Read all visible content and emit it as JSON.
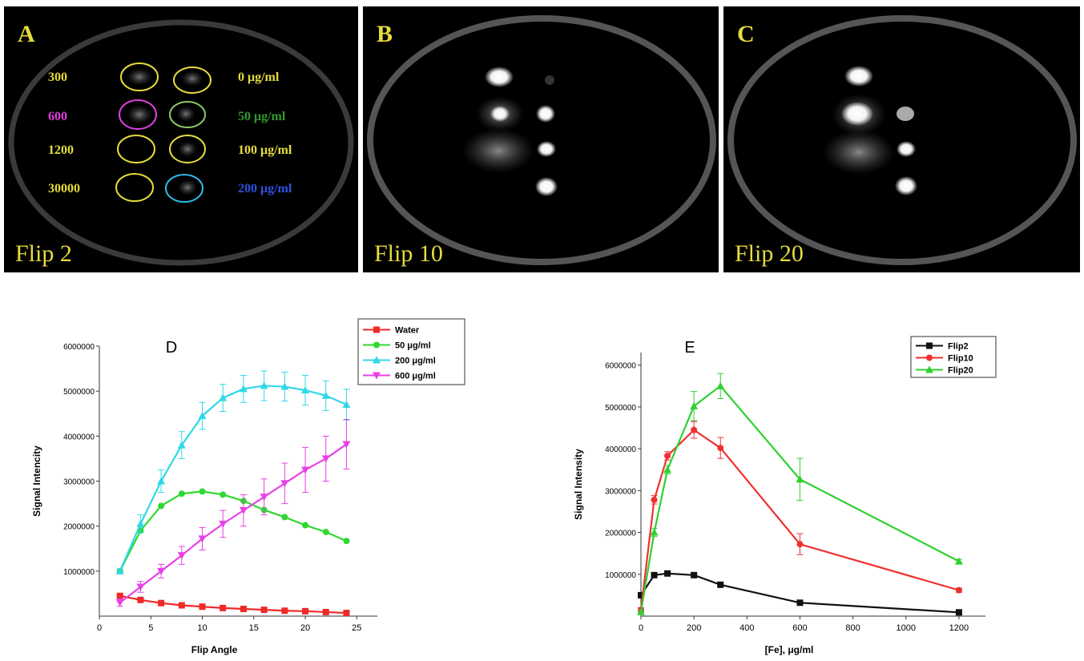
{
  "panels": [
    {
      "letter": "A",
      "caption": "Flip 2",
      "left_labels": [
        {
          "text": "300",
          "color": "#e6dc3c"
        },
        {
          "text": "600",
          "color": "#e040e0"
        },
        {
          "text": "1200",
          "color": "#e6dc3c"
        },
        {
          "text": "30000",
          "color": "#e6dc3c"
        }
      ],
      "right_labels": [
        {
          "text": "0 μg/ml",
          "color": "#e6dc3c"
        },
        {
          "text": "50 μg/ml",
          "color": "#2f9a2f"
        },
        {
          "text": "100 μg/ml",
          "color": "#e6dc3c"
        },
        {
          "text": "200 μg/ml",
          "color": "#3050e0"
        }
      ]
    },
    {
      "letter": "B",
      "caption": "Flip 10"
    },
    {
      "letter": "C",
      "caption": "Flip 20"
    }
  ],
  "chart_data": [
    {
      "type": "line",
      "title": "D",
      "x_label": "Flip Angle",
      "y_label": "Signal Intencity",
      "x": [
        2,
        4,
        6,
        8,
        10,
        12,
        14,
        16,
        18,
        20,
        22,
        24
      ],
      "xlim": [
        0,
        27
      ],
      "xticks": [
        0,
        5,
        10,
        15,
        20,
        25
      ],
      "ylim": [
        0,
        6000000
      ],
      "yticks": [
        1000000,
        2000000,
        3000000,
        4000000,
        5000000,
        6000000
      ],
      "series": [
        {
          "name": "Water",
          "color": "#f02828",
          "marker": "square",
          "values": [
            450000,
            360000,
            290000,
            240000,
            210000,
            180000,
            160000,
            140000,
            120000,
            110000,
            90000,
            70000
          ]
        },
        {
          "name": "50 μg/ml",
          "color": "#30d830",
          "marker": "circle",
          "values": [
            1000000,
            1900000,
            2450000,
            2720000,
            2770000,
            2700000,
            2560000,
            2360000,
            2200000,
            2020000,
            1870000,
            1670000
          ]
        },
        {
          "name": "200 μg/ml",
          "color": "#30d8e8",
          "marker": "triangle",
          "values": [
            1000000,
            2050000,
            3000000,
            3800000,
            4450000,
            4850000,
            5050000,
            5120000,
            5100000,
            5020000,
            4900000,
            4700000
          ],
          "errors": [
            50000,
            200000,
            250000,
            300000,
            300000,
            300000,
            300000,
            330000,
            320000,
            330000,
            330000,
            340000
          ]
        },
        {
          "name": "600 μg/ml",
          "color": "#e840e8",
          "marker": "triangle-down",
          "values": [
            300000,
            650000,
            1000000,
            1350000,
            1720000,
            2050000,
            2350000,
            2650000,
            2950000,
            3250000,
            3500000,
            3820000
          ],
          "errors": [
            80000,
            120000,
            150000,
            200000,
            250000,
            300000,
            350000,
            400000,
            450000,
            500000,
            500000,
            550000
          ]
        }
      ]
    },
    {
      "type": "line",
      "title": "E",
      "x_label": "[Fe], μg/ml",
      "y_label": "Signal Intensity",
      "x": [
        0,
        50,
        100,
        200,
        300,
        600,
        1200
      ],
      "xlim": [
        0,
        1300
      ],
      "xticks": [
        0,
        200,
        400,
        600,
        800,
        1000,
        1200
      ],
      "ylim": [
        0,
        6300000
      ],
      "yticks": [
        1000000,
        2000000,
        3000000,
        4000000,
        5000000,
        6000000
      ],
      "series": [
        {
          "name": "Flip2",
          "color": "#111111",
          "marker": "square",
          "values": [
            500000,
            980000,
            1020000,
            980000,
            750000,
            320000,
            90000
          ]
        },
        {
          "name": "Flip10",
          "color": "#f03030",
          "marker": "circle",
          "values": [
            150000,
            2780000,
            3830000,
            4450000,
            4020000,
            1720000,
            620000
          ],
          "errors": [
            50000,
            100000,
            100000,
            200000,
            250000,
            250000,
            50000
          ]
        },
        {
          "name": "Flip20",
          "color": "#30d030",
          "marker": "triangle",
          "values": [
            100000,
            2000000,
            3500000,
            5020000,
            5500000,
            3270000,
            1310000
          ],
          "errors": [
            50000,
            100000,
            100000,
            350000,
            300000,
            500000,
            50000
          ]
        }
      ]
    }
  ]
}
